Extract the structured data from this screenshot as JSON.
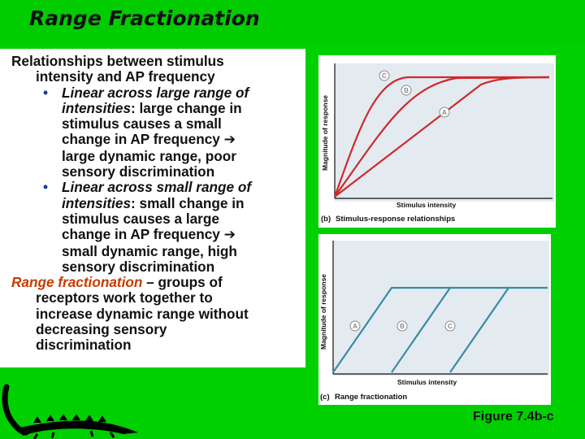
{
  "title": "Range Fractionation",
  "intro": {
    "line1": "Relationships between stimulus",
    "line2": "intensity and AP frequency"
  },
  "bullet1": {
    "line1": "Linear across large range of",
    "italic": "intensities",
    "line2_rest": ": large change in",
    "line3": "stimulus causes a small",
    "line4": "change in AP frequency",
    "line5": "large dynamic range, poor",
    "line6": "sensory discrimination"
  },
  "bullet2": {
    "line1": "Linear across small range of",
    "italic": "intensities",
    "line2_rest": ": small change in",
    "line3": "stimulus causes a large",
    "line4": "change in AP frequency",
    "line5": "small dynamic range, high",
    "line6": "sensory discrimination"
  },
  "range": {
    "term": "Range fractionation",
    "rest": " – groups of",
    "line2": "receptors work together to",
    "line3": "increase dynamic range without",
    "line4": "decreasing sensory",
    "line5": "discrimination"
  },
  "figure_b": {
    "ylabel": "Magnitude of response",
    "xlabel": "Stimulus intensity",
    "caption_letter": "(b)",
    "caption": "Stimulus-response relationships",
    "curve_labels": [
      "C",
      "B",
      "A"
    ]
  },
  "figure_c": {
    "ylabel": "Magnitude of response",
    "xlabel": "Stimulus intensity",
    "caption_letter": "(c)",
    "caption": "Range fractionation",
    "line_labels": [
      "A",
      "B",
      "C"
    ]
  },
  "figure_ref": "Figure 7.4b-c",
  "colors": {
    "background": "#00cc00",
    "highlight": "#c63b00",
    "curve_red": "#d0282a",
    "line_teal": "#3a8aa6",
    "circle_gray": "#8a8a8a"
  }
}
